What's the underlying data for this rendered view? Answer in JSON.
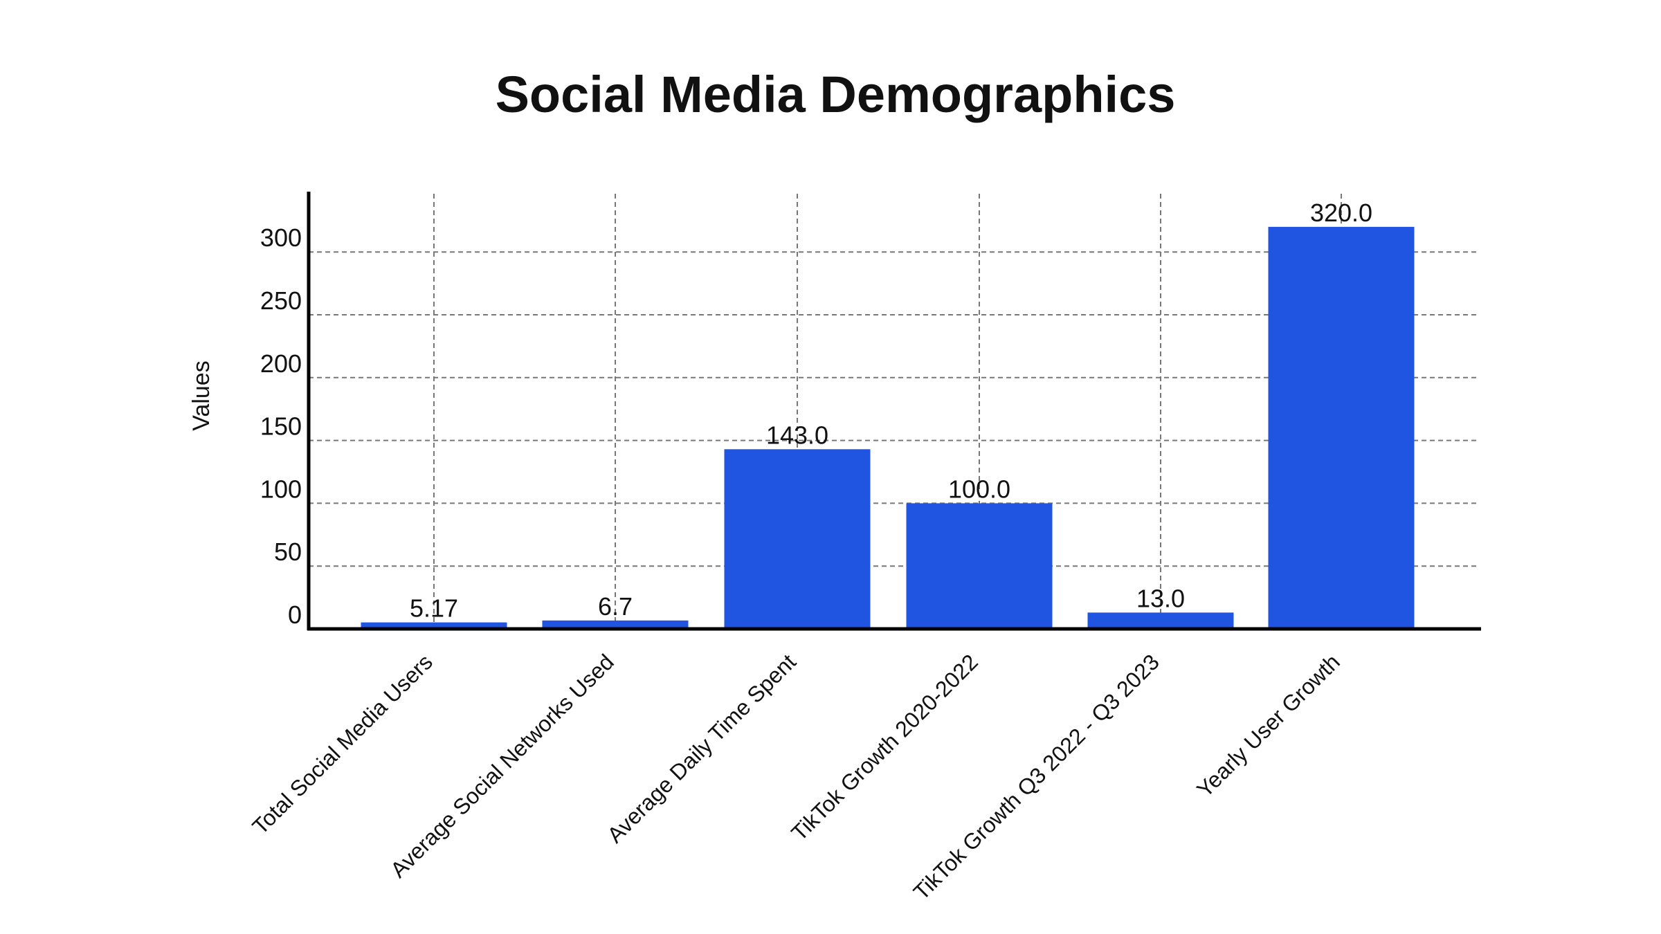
{
  "chart_data": {
    "type": "bar",
    "title": "Social Media Demographics",
    "xlabel": "",
    "ylabel": "Values",
    "categories": [
      "Total Social Media Users",
      "Average Social Networks Used",
      "Average Daily Time Spent",
      "TikTok Growth 2020-2022",
      "TikTok Growth Q3 2022 - Q3 2023",
      "Yearly User Growth"
    ],
    "values": [
      5.17,
      6.7,
      143.0,
      100.0,
      13.0,
      320.0
    ],
    "data_labels": [
      "5.17",
      "6.7",
      "143.0",
      "100.0",
      "13.0",
      "320.0"
    ],
    "yticks": [
      0,
      50,
      100,
      150,
      200,
      250,
      300
    ],
    "ylim": [
      0,
      345
    ],
    "grid": true,
    "bar_color": "#1f55e0"
  }
}
